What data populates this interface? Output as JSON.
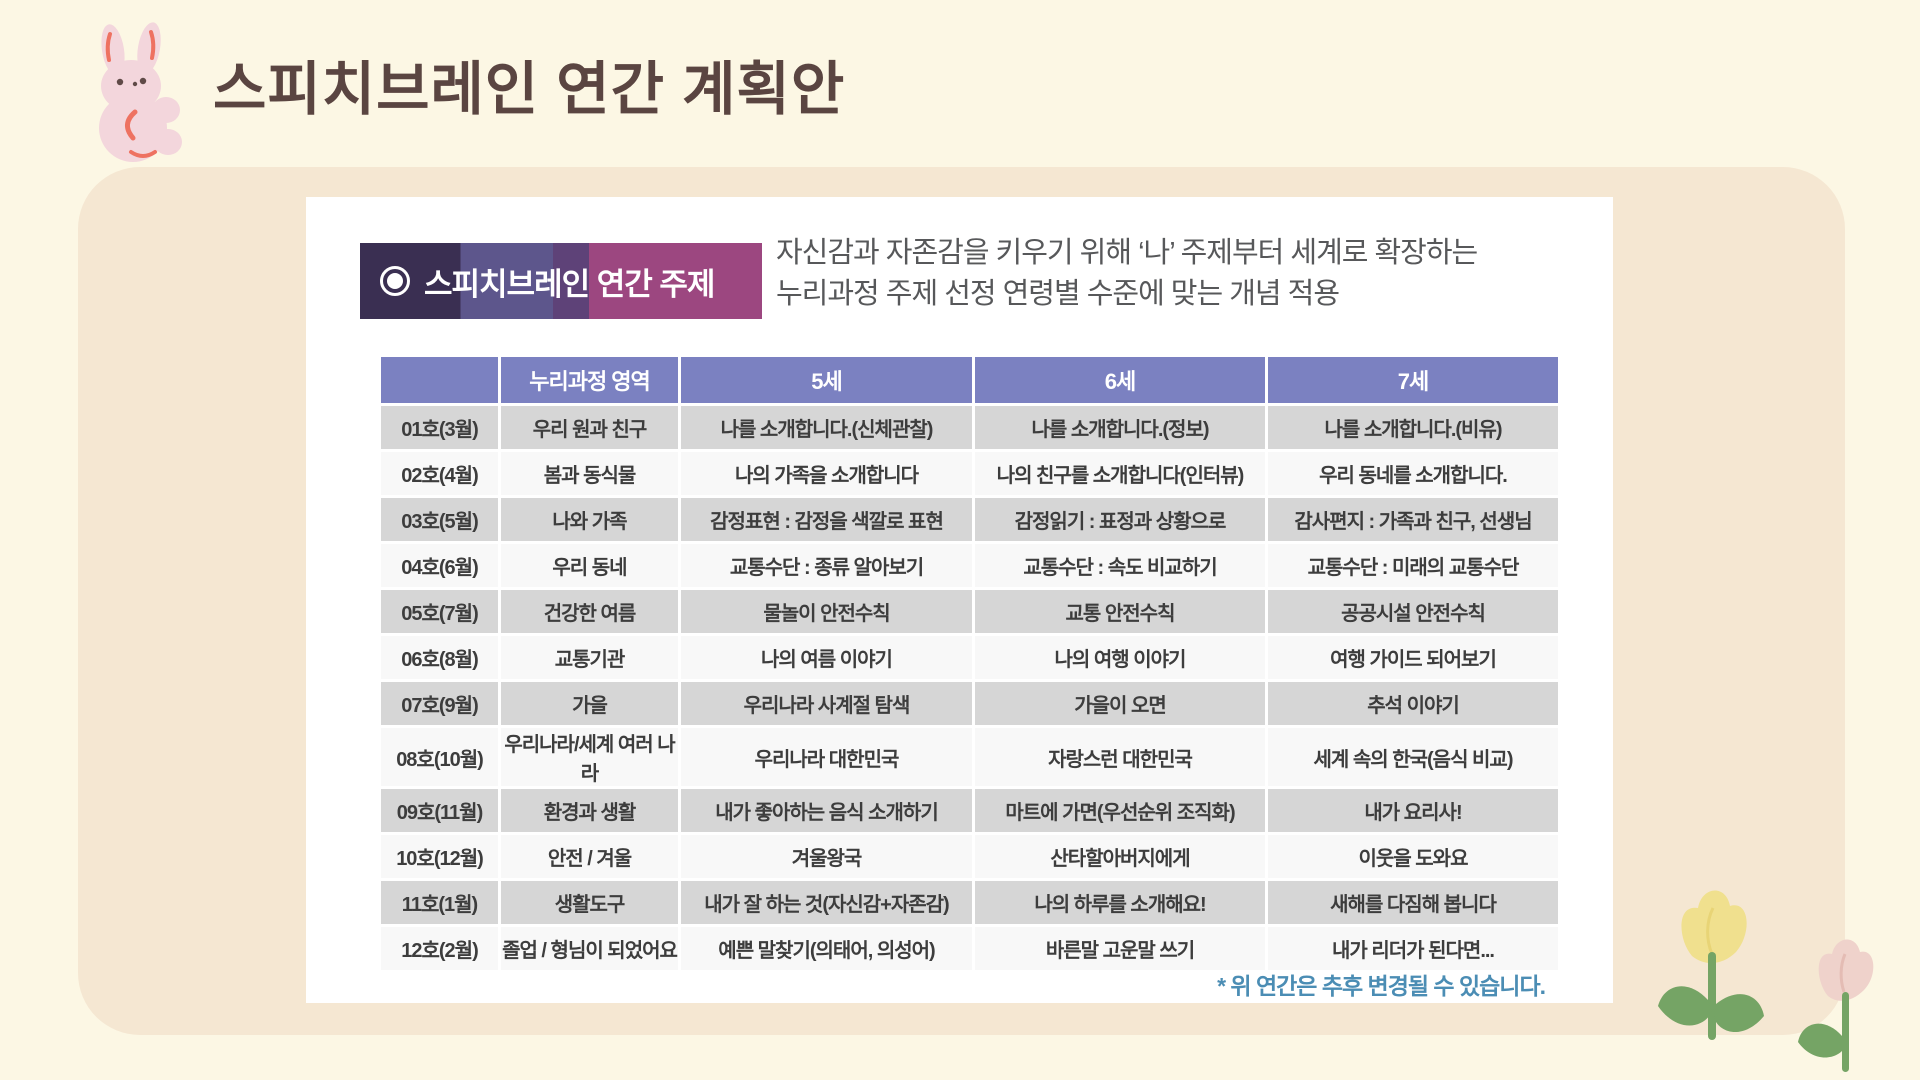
{
  "page": {
    "title": "스피치브레인 연간 계획안"
  },
  "card": {
    "badge": {
      "icon": "ring-dot-bullet-icon",
      "label": "스피치브레인 연간 주제"
    },
    "description": {
      "line1": "자신감과 자존감을 키우기 위해 ‘나’ 주제부터 세계로 확장하는",
      "line2": "누리과정 주제 선정 연령별 수준에 맞는 개념 적용"
    },
    "footnote": "* 위 연간은 추후 변경될 수 있습니다."
  },
  "table": {
    "headers": [
      "",
      "누리과정 영역",
      "5세",
      "6세",
      "7세"
    ],
    "rows": [
      [
        "01호(3월)",
        "우리 원과 친구",
        "나를 소개합니다.(신체관찰)",
        "나를 소개합니다.(정보)",
        "나를 소개합니다.(비유)"
      ],
      [
        "02호(4월)",
        "봄과 동식물",
        "나의 가족을 소개합니다",
        "나의 친구를 소개합니다(인터뷰)",
        "우리 동네를 소개합니다."
      ],
      [
        "03호(5월)",
        "나와 가족",
        "감정표현 : 감정을 색깔로 표현",
        "감정읽기 : 표정과 상황으로",
        "감사편지 : 가족과 친구, 선생님"
      ],
      [
        "04호(6월)",
        "우리 동네",
        "교통수단 : 종류 알아보기",
        "교통수단 : 속도 비교하기",
        "교통수단 : 미래의 교통수단"
      ],
      [
        "05호(7월)",
        "건강한 여름",
        "물놀이 안전수칙",
        "교통 안전수칙",
        "공공시설 안전수칙"
      ],
      [
        "06호(8월)",
        "교통기관",
        "나의 여름 이야기",
        "나의 여행 이야기",
        "여행 가이드 되어보기"
      ],
      [
        "07호(9월)",
        "가을",
        "우리나라 사계절 탐색",
        "가을이 오면",
        "추석 이야기"
      ],
      [
        "08호(10월)",
        "우리나라/세계 여러 나라",
        "우리나라 대한민국",
        "자랑스런 대한민국",
        "세계 속의 한국(음식 비교)"
      ],
      [
        "09호(11월)",
        "환경과 생활",
        "내가 좋아하는 음식 소개하기",
        "마트에 가면(우선순위 조직화)",
        "내가 요리사!"
      ],
      [
        "10호(12월)",
        "안전 / 겨울",
        "겨울왕국",
        "산타할아버지에게",
        "이웃을 도와요"
      ],
      [
        "11호(1월)",
        "생활도구",
        "내가 잘 하는 것(자신감+자존감)",
        "나의 하루를 소개해요!",
        "새해를 다짐해 봅니다"
      ],
      [
        "12호(2월)",
        "졸업 / 형님이 되었어요",
        "예쁜 말찾기(의태어, 의성어)",
        "바른말 고운말 쓰기",
        "내가 리더가 된다면..."
      ]
    ]
  },
  "colors": {
    "page_bg": "#fcf7e4",
    "panel_bg": "#f5e7d2",
    "header_bg": "#7b81c1",
    "row_gray": "#d6d6d6",
    "row_light": "#f8f8f8",
    "area_pink": "#d957a3",
    "footnote_blue": "#4b8db4",
    "title_brown": "#5a4541",
    "badge_gradient": [
      "#3a2f52",
      "#5d568c",
      "#5e4278",
      "#9c4780"
    ]
  },
  "decorations": {
    "bunny": "pink-bunny-illustration",
    "flowers": "yellow-and-pink-tulips-illustration"
  }
}
